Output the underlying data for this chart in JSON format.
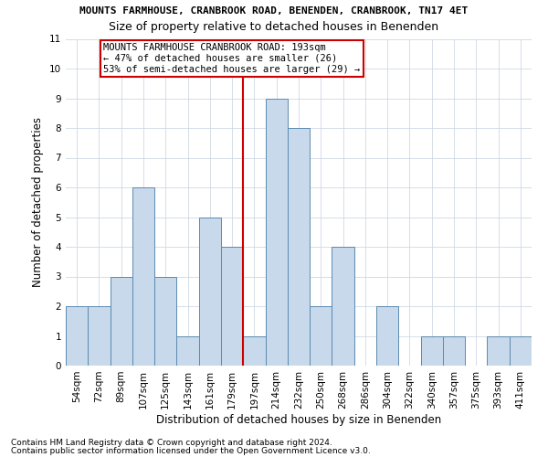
{
  "title": "MOUNTS FARMHOUSE, CRANBROOK ROAD, BENENDEN, CRANBROOK, TN17 4ET",
  "subtitle": "Size of property relative to detached houses in Benenden",
  "xlabel": "Distribution of detached houses by size in Benenden",
  "ylabel": "Number of detached properties",
  "categories": [
    "54sqm",
    "72sqm",
    "89sqm",
    "107sqm",
    "125sqm",
    "143sqm",
    "161sqm",
    "179sqm",
    "197sqm",
    "214sqm",
    "232sqm",
    "250sqm",
    "268sqm",
    "286sqm",
    "304sqm",
    "322sqm",
    "340sqm",
    "357sqm",
    "375sqm",
    "393sqm",
    "411sqm"
  ],
  "values": [
    2,
    2,
    3,
    6,
    3,
    1,
    5,
    4,
    1,
    9,
    8,
    2,
    4,
    0,
    2,
    0,
    1,
    1,
    0,
    1,
    1
  ],
  "bar_color": "#c9d9ec",
  "bar_edge_color": "#5a8ab0",
  "grid_color": "#d0d8e4",
  "vline_index": 8,
  "vline_color": "#cc0000",
  "ylim": [
    0,
    11
  ],
  "yticks": [
    0,
    1,
    2,
    3,
    4,
    5,
    6,
    7,
    8,
    9,
    10,
    11
  ],
  "annotation_title": "MOUNTS FARMHOUSE CRANBROOK ROAD: 193sqm",
  "annotation_line1": "← 47% of detached houses are smaller (26)",
  "annotation_line2": "53% of semi-detached houses are larger (29) →",
  "annotation_box_color": "#ffffff",
  "annotation_box_edge": "#cc0000",
  "footer1": "Contains HM Land Registry data © Crown copyright and database right 2024.",
  "footer2": "Contains public sector information licensed under the Open Government Licence v3.0.",
  "background_color": "#ffffff",
  "title_fontsize": 8.0,
  "subtitle_fontsize": 9.0,
  "ylabel_fontsize": 8.5,
  "xlabel_fontsize": 8.5,
  "tick_fontsize": 7.5,
  "ann_fontsize": 7.5,
  "footer_fontsize": 6.5
}
